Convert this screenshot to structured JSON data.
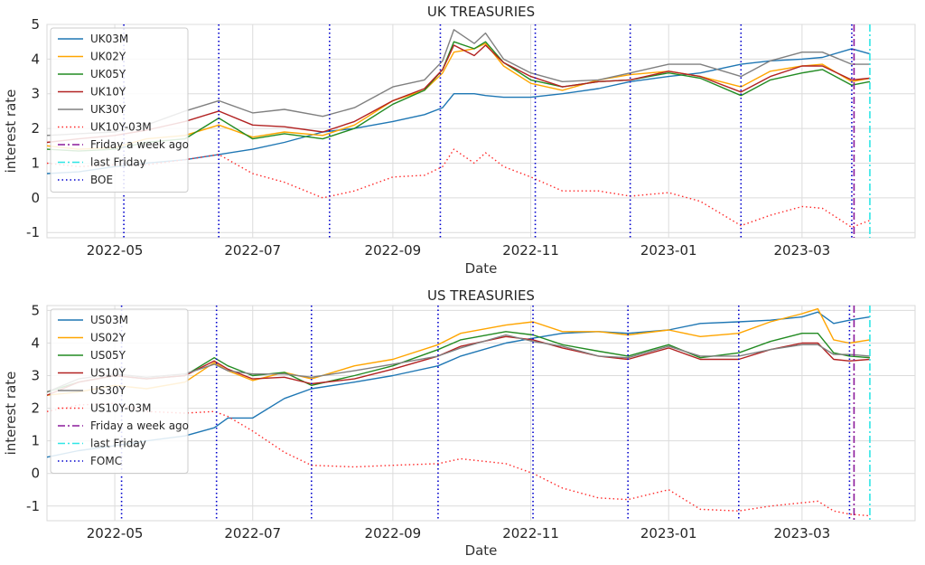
{
  "chart_data": [
    {
      "type": "line",
      "title": "UK TREASURIES",
      "xlabel": "Date",
      "ylabel": "interest rate",
      "x_range": [
        "2022-04-01",
        "2023-04-20"
      ],
      "ylim": [
        -1.15,
        5.0
      ],
      "yticks": [
        -1,
        0,
        1,
        2,
        3,
        4,
        5
      ],
      "xticks": [
        "2022-05",
        "2022-07",
        "2022-09",
        "2022-11",
        "2023-01",
        "2023-03"
      ],
      "grid": true,
      "legend_position": "upper-left",
      "x": [
        "2022-04-01",
        "2022-04-15",
        "2022-05-01",
        "2022-05-15",
        "2022-06-01",
        "2022-06-16",
        "2022-07-01",
        "2022-07-15",
        "2022-08-01",
        "2022-08-15",
        "2022-09-01",
        "2022-09-15",
        "2022-09-23",
        "2022-09-28",
        "2022-10-07",
        "2022-10-12",
        "2022-10-20",
        "2022-11-01",
        "2022-11-15",
        "2022-12-01",
        "2022-12-15",
        "2023-01-01",
        "2023-01-15",
        "2023-02-02",
        "2023-02-15",
        "2023-03-01",
        "2023-03-10",
        "2023-03-23",
        "2023-03-31"
      ],
      "series": [
        {
          "name": "UK03M",
          "color": "#1f77b4",
          "style": "solid",
          "values": [
            0.7,
            0.75,
            0.9,
            1.0,
            1.1,
            1.25,
            1.4,
            1.6,
            1.9,
            2.0,
            2.2,
            2.4,
            2.6,
            3.0,
            3.0,
            2.95,
            2.9,
            2.9,
            3.0,
            3.15,
            3.35,
            3.5,
            3.6,
            3.85,
            3.95,
            4.0,
            4.05,
            4.3,
            4.15
          ]
        },
        {
          "name": "UK02Y",
          "color": "#ffa500",
          "style": "solid",
          "values": [
            1.5,
            1.4,
            1.45,
            1.7,
            1.8,
            2.1,
            1.75,
            1.9,
            1.8,
            2.1,
            2.8,
            3.1,
            3.6,
            4.2,
            4.3,
            4.45,
            3.8,
            3.3,
            3.1,
            3.4,
            3.55,
            3.65,
            3.5,
            3.2,
            3.65,
            3.8,
            3.85,
            3.35,
            3.45
          ]
        },
        {
          "name": "UK05Y",
          "color": "#228b22",
          "style": "solid",
          "values": [
            1.4,
            1.35,
            1.4,
            1.6,
            1.7,
            2.3,
            1.7,
            1.85,
            1.7,
            2.0,
            2.7,
            3.1,
            3.7,
            4.5,
            4.3,
            4.5,
            3.9,
            3.4,
            3.2,
            3.35,
            3.4,
            3.6,
            3.45,
            2.95,
            3.4,
            3.6,
            3.7,
            3.25,
            3.35
          ]
        },
        {
          "name": "UK10Y",
          "color": "#b22222",
          "style": "solid",
          "values": [
            1.6,
            1.7,
            1.8,
            1.95,
            2.2,
            2.5,
            2.1,
            2.05,
            1.9,
            2.2,
            2.8,
            3.15,
            3.7,
            4.4,
            4.1,
            4.4,
            3.9,
            3.5,
            3.2,
            3.35,
            3.4,
            3.65,
            3.5,
            3.05,
            3.5,
            3.8,
            3.8,
            3.4,
            3.45
          ]
        },
        {
          "name": "UK30Y",
          "color": "#808080",
          "style": "solid",
          "values": [
            1.8,
            1.85,
            1.9,
            2.1,
            2.5,
            2.8,
            2.45,
            2.55,
            2.35,
            2.6,
            3.2,
            3.4,
            3.95,
            4.85,
            4.45,
            4.75,
            4.0,
            3.6,
            3.35,
            3.4,
            3.6,
            3.85,
            3.85,
            3.5,
            3.95,
            4.2,
            4.2,
            3.85,
            3.85
          ]
        },
        {
          "name": "UK10Y-03M",
          "color": "#ff2a2a",
          "style": "dotted",
          "values": [
            1.0,
            0.9,
            0.95,
            0.95,
            1.1,
            1.25,
            0.7,
            0.45,
            0.0,
            0.2,
            0.6,
            0.65,
            0.9,
            1.4,
            1.0,
            1.3,
            0.9,
            0.6,
            0.2,
            0.2,
            0.05,
            0.15,
            -0.1,
            -0.8,
            -0.5,
            -0.25,
            -0.3,
            -0.85,
            -0.65
          ]
        }
      ],
      "vlines": [
        {
          "name": "Friday a week ago",
          "date": "2023-03-24",
          "color": "#8b1a9b",
          "style": "dashdot"
        },
        {
          "name": "last Friday",
          "date": "2023-03-31",
          "color": "#2ee6e6",
          "style": "dashdot"
        },
        {
          "name": "BOE",
          "dates": [
            "2022-05-05",
            "2022-06-16",
            "2022-08-04",
            "2022-09-22",
            "2022-11-03",
            "2022-12-15",
            "2023-02-02",
            "2023-03-23"
          ],
          "color": "#0000cd",
          "style": "dotted"
        }
      ]
    },
    {
      "type": "line",
      "title": "US TREASURIES",
      "xlabel": "Date",
      "ylabel": "interest rate",
      "x_range": [
        "2022-04-01",
        "2023-04-20"
      ],
      "ylim": [
        -1.45,
        5.15
      ],
      "yticks": [
        -1,
        0,
        1,
        2,
        3,
        4,
        5
      ],
      "xticks": [
        "2022-05",
        "2022-07",
        "2022-09",
        "2022-11",
        "2023-01",
        "2023-03"
      ],
      "grid": true,
      "legend_position": "upper-left",
      "x": [
        "2022-04-01",
        "2022-04-15",
        "2022-05-01",
        "2022-05-15",
        "2022-06-01",
        "2022-06-14",
        "2022-06-20",
        "2022-07-01",
        "2022-07-15",
        "2022-07-27",
        "2022-08-15",
        "2022-09-01",
        "2022-09-21",
        "2022-10-01",
        "2022-10-21",
        "2022-11-02",
        "2022-11-15",
        "2022-12-01",
        "2022-12-14",
        "2023-01-01",
        "2023-01-15",
        "2023-02-01",
        "2023-02-15",
        "2023-03-01",
        "2023-03-08",
        "2023-03-15",
        "2023-03-22",
        "2023-03-31"
      ],
      "series": [
        {
          "name": "US03M",
          "color": "#1f77b4",
          "style": "solid",
          "values": [
            0.5,
            0.7,
            0.85,
            1.0,
            1.15,
            1.4,
            1.7,
            1.7,
            2.3,
            2.6,
            2.8,
            3.0,
            3.3,
            3.6,
            4.0,
            4.15,
            4.3,
            4.35,
            4.3,
            4.4,
            4.6,
            4.65,
            4.7,
            4.8,
            4.95,
            4.6,
            4.7,
            4.8
          ]
        },
        {
          "name": "US02Y",
          "color": "#ffa500",
          "style": "solid",
          "values": [
            2.4,
            2.5,
            2.7,
            2.6,
            2.8,
            3.4,
            3.15,
            2.85,
            3.1,
            2.9,
            3.3,
            3.5,
            3.95,
            4.3,
            4.55,
            4.65,
            4.35,
            4.35,
            4.25,
            4.4,
            4.2,
            4.3,
            4.65,
            4.9,
            5.05,
            4.1,
            4.0,
            4.1
          ]
        },
        {
          "name": "US05Y",
          "color": "#228b22",
          "style": "solid",
          "values": [
            2.5,
            2.8,
            3.0,
            2.9,
            3.0,
            3.55,
            3.3,
            3.0,
            3.1,
            2.7,
            3.0,
            3.3,
            3.8,
            4.1,
            4.35,
            4.25,
            3.95,
            3.75,
            3.6,
            3.95,
            3.55,
            3.7,
            4.05,
            4.3,
            4.3,
            3.7,
            3.6,
            3.55
          ]
        },
        {
          "name": "US10Y",
          "color": "#b22222",
          "style": "solid",
          "values": [
            2.4,
            2.8,
            3.0,
            2.9,
            3.0,
            3.45,
            3.2,
            2.9,
            2.95,
            2.75,
            2.9,
            3.2,
            3.6,
            3.9,
            4.2,
            4.1,
            3.85,
            3.6,
            3.5,
            3.85,
            3.5,
            3.5,
            3.8,
            4.0,
            4.0,
            3.5,
            3.45,
            3.5
          ]
        },
        {
          "name": "US30Y",
          "color": "#808080",
          "style": "solid",
          "values": [
            2.5,
            2.9,
            3.05,
            2.95,
            3.05,
            3.35,
            3.15,
            3.05,
            3.05,
            2.95,
            3.15,
            3.35,
            3.6,
            3.85,
            4.25,
            4.05,
            3.9,
            3.6,
            3.55,
            3.9,
            3.6,
            3.6,
            3.8,
            3.95,
            3.95,
            3.65,
            3.65,
            3.6
          ]
        },
        {
          "name": "US10Y-03M",
          "color": "#ff2a2a",
          "style": "dotted",
          "values": [
            1.9,
            2.1,
            2.15,
            1.9,
            1.85,
            1.9,
            1.75,
            1.3,
            0.65,
            0.25,
            0.2,
            0.25,
            0.3,
            0.45,
            0.3,
            0.0,
            -0.45,
            -0.75,
            -0.8,
            -0.5,
            -1.1,
            -1.15,
            -1.0,
            -0.9,
            -0.85,
            -1.15,
            -1.25,
            -1.3
          ]
        }
      ],
      "vlines": [
        {
          "name": "Friday a week ago",
          "date": "2023-03-24",
          "color": "#8b1a9b",
          "style": "dashdot"
        },
        {
          "name": "last Friday",
          "date": "2023-03-31",
          "color": "#2ee6e6",
          "style": "dashdot"
        },
        {
          "name": "FOMC",
          "dates": [
            "2022-05-04",
            "2022-06-15",
            "2022-07-27",
            "2022-09-21",
            "2022-11-02",
            "2022-12-14",
            "2023-02-01",
            "2023-03-22"
          ],
          "color": "#0000cd",
          "style": "dotted"
        }
      ]
    }
  ]
}
